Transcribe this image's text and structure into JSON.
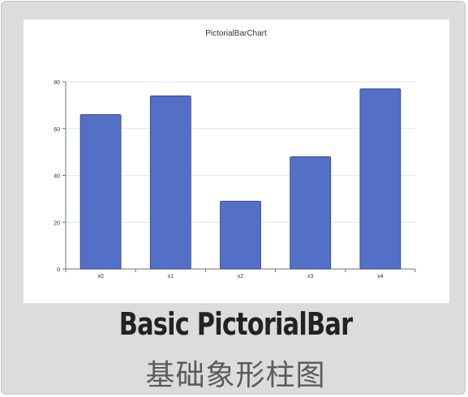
{
  "caption": {
    "title": "Basic PictorialBar",
    "subtitle": "基础象形柱图"
  },
  "colors": {
    "bar": "#5470c6",
    "bar_edge": "#2f3f80",
    "axis": "#6e7079",
    "grid": "#e0e6f1",
    "card": "#dcdcdc"
  },
  "chart_data": {
    "type": "bar",
    "title": "PictorialBarChart",
    "categories": [
      "x0",
      "x1",
      "x2",
      "x3",
      "x4"
    ],
    "values": [
      66,
      74,
      29,
      48,
      77
    ],
    "y_ticks": [
      0,
      20,
      40,
      60,
      80
    ],
    "ylim": [
      0,
      80
    ],
    "xlabel": "",
    "ylabel": "",
    "grid": true,
    "legend": "none"
  }
}
